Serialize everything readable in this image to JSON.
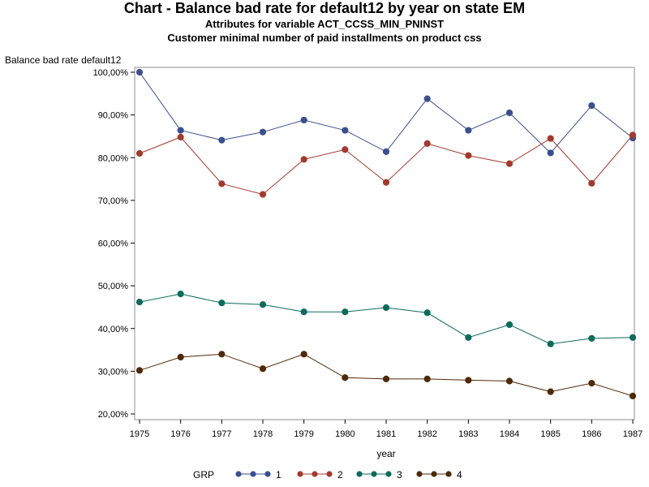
{
  "chart_data": {
    "type": "line",
    "title": "Chart - Balance bad rate for default12 by year on state EM",
    "subtitle1": "Attributes for variable ACT_CCSS_MIN_PNINST",
    "subtitle2": "Customer minimal number of paid installments on product css",
    "xlabel": "year",
    "ylabel": "Balance bad rate default12",
    "x": [
      1975,
      1976,
      1977,
      1978,
      1979,
      1980,
      1981,
      1982,
      1983,
      1984,
      1985,
      1986,
      1987
    ],
    "xlim": [
      1975,
      1987
    ],
    "ylim": [
      0.2,
      1.0
    ],
    "yticks": [
      {
        "value": 0.2,
        "label": "20,00%"
      },
      {
        "value": 0.3,
        "label": "30,00%"
      },
      {
        "value": 0.4,
        "label": "40,00%"
      },
      {
        "value": 0.5,
        "label": "50,00%"
      },
      {
        "value": 0.6,
        "label": "60,00%"
      },
      {
        "value": 0.7,
        "label": "70,00%"
      },
      {
        "value": 0.8,
        "label": "80,00%"
      },
      {
        "value": 0.9,
        "label": "90,00%"
      },
      {
        "value": 1.0,
        "label": "100,00%"
      }
    ],
    "grid": false,
    "legend_title": "GRP",
    "legend_position": "bottom",
    "series": [
      {
        "name": "1",
        "color": "#3b4f8f",
        "values": [
          1.0,
          0.864,
          0.841,
          0.86,
          0.888,
          0.864,
          0.814,
          0.938,
          0.864,
          0.905,
          0.811,
          0.922,
          0.846
        ]
      },
      {
        "name": "2",
        "color": "#a23a2d",
        "values": [
          0.81,
          0.848,
          0.739,
          0.714,
          0.796,
          0.819,
          0.742,
          0.833,
          0.805,
          0.786,
          0.845,
          0.74,
          0.853
        ]
      },
      {
        "name": "3",
        "color": "#0d6b5c",
        "values": [
          0.462,
          0.481,
          0.46,
          0.456,
          0.439,
          0.439,
          0.449,
          0.437,
          0.379,
          0.409,
          0.364,
          0.377,
          0.379
        ]
      },
      {
        "name": "4",
        "color": "#4f2a08",
        "values": [
          0.302,
          0.333,
          0.34,
          0.306,
          0.34,
          0.285,
          0.282,
          0.282,
          0.279,
          0.277,
          0.252,
          0.272,
          0.242
        ]
      }
    ]
  }
}
